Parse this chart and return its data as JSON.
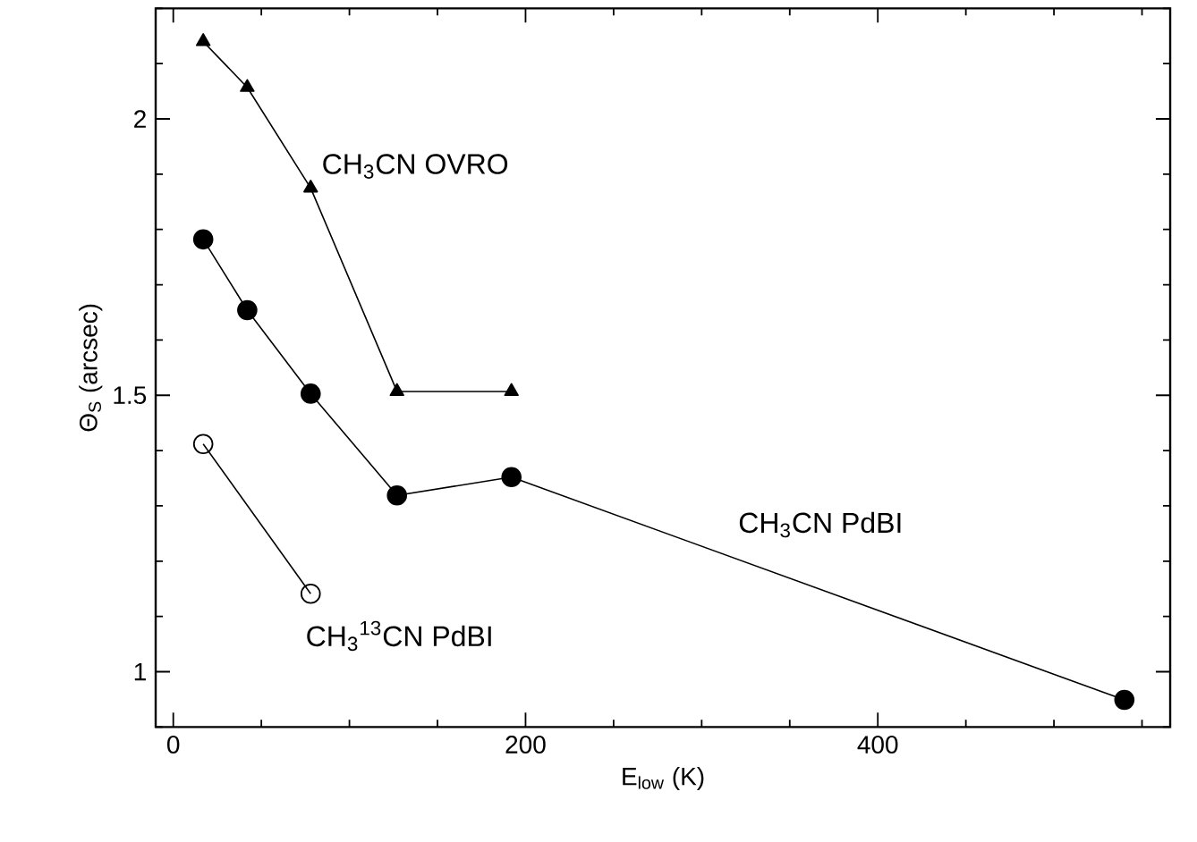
{
  "chart_data": {
    "type": "line",
    "xlabel": "E$_{low}$ (K)",
    "ylabel": "Θ$_{S}$ (arcsec)",
    "series": [
      {
        "name": "CH$_{3}$CN OVRO",
        "color": "#000000",
        "marker": "triangle",
        "x": [
          17,
          42,
          78,
          127,
          192
        ],
        "values": [
          2.14,
          2.057,
          1.875,
          1.507,
          1.507
        ]
      },
      {
        "name": "CH$_{3}$CN PdBI",
        "color": "#000000",
        "marker": "circle",
        "x": [
          17,
          42,
          78,
          127,
          192,
          540
        ],
        "values": [
          1.782,
          1.654,
          1.503,
          1.319,
          1.352,
          0.949
        ]
      },
      {
        "name": "CH$_{3}$$^{13}$CN PdBI",
        "color": "#000000",
        "marker": "circle",
        "x": [
          17,
          78
        ],
        "values": [
          1.412,
          1.141
        ]
      }
    ],
    "xlim": [
      -10,
      566
    ],
    "ylim": [
      0.9,
      2.2
    ],
    "xticks": [
      0,
      {
        "value": 50,
        "label": null
      },
      {
        "value": 100,
        "label": null
      },
      {
        "value": 150,
        "label": null
      },
      200,
      {
        "value": 250,
        "label": null
      },
      {
        "value": 300,
        "label": null
      },
      {
        "value": 350,
        "label": null
      },
      400,
      {
        "value": 450,
        "label": null
      },
      {
        "value": 500,
        "label": null
      },
      {
        "value": 550,
        "label": null
      }
    ],
    "yticks": [
      {
        "value": 0.9,
        "label": null
      },
      1,
      {
        "value": 1.1,
        "label": null
      },
      {
        "value": 1.2,
        "label": null
      },
      {
        "value": 1.3,
        "label": null
      },
      {
        "value": 1.4,
        "label": null
      },
      1.5,
      {
        "value": 1.6,
        "label": null
      },
      {
        "value": 1.7,
        "label": null
      },
      {
        "value": 1.8,
        "label": null
      },
      {
        "value": 1.9,
        "label": null
      },
      2,
      {
        "value": 2.1,
        "label": null
      },
      {
        "value": 2.2,
        "label": null
      }
    ],
    "grid": false
  }
}
